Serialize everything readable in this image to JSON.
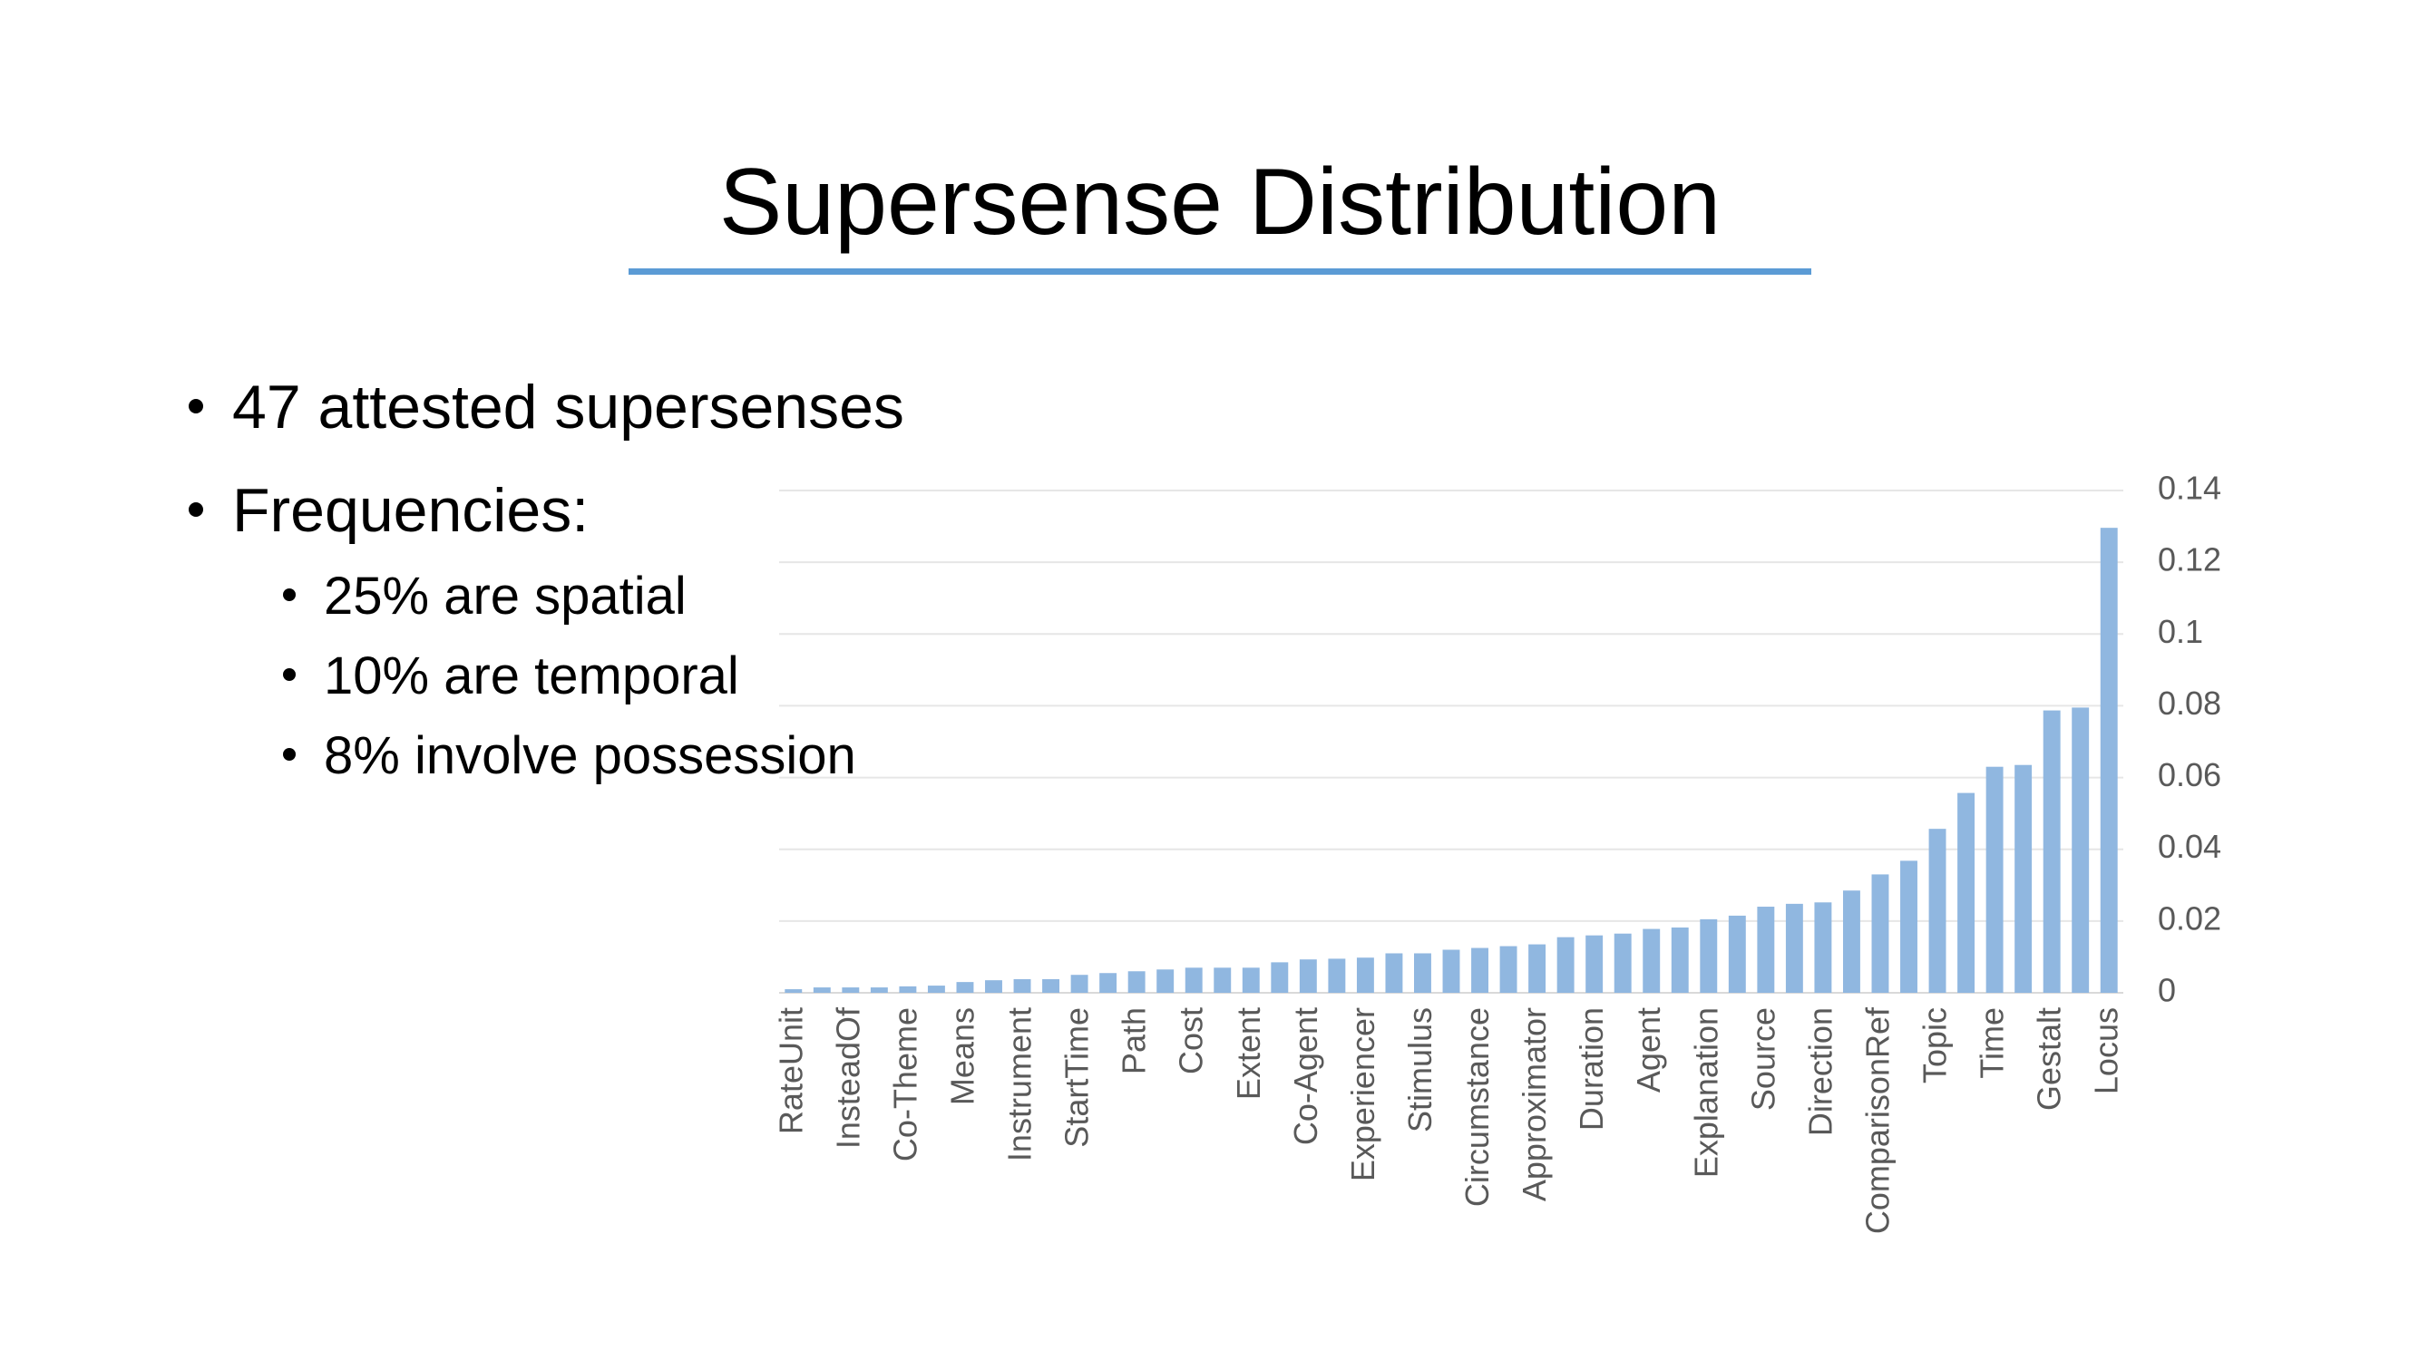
{
  "slide": {
    "title": "Supersense Distribution",
    "bullets": [
      "47 attested supersenses",
      "Frequencies:"
    ],
    "sub_bullets": [
      "25% are spatial",
      "10% are temporal",
      "8% involve possession"
    ]
  },
  "chart_data": {
    "type": "bar",
    "color": "#90b7e0",
    "grid": true,
    "categories": [
      "RateUnit",
      null,
      "InsteadOf",
      null,
      "Co-Theme",
      null,
      "Means",
      null,
      "Instrument",
      null,
      "StartTime",
      null,
      "Path",
      null,
      "Cost",
      null,
      "Extent",
      null,
      "Co-Agent",
      null,
      "Experiencer",
      null,
      "Stimulus",
      null,
      "Circumstance",
      null,
      "Approximator",
      null,
      "Duration",
      null,
      "Agent",
      null,
      "Explanation",
      null,
      "Source",
      null,
      "Direction",
      null,
      "ComparisonRef",
      null,
      "Topic",
      null,
      "Time",
      null,
      "Gestalt",
      null,
      "Locus"
    ],
    "values": [
      0.001,
      0.0015,
      0.0015,
      0.0015,
      0.0018,
      0.002,
      0.003,
      0.0035,
      0.0038,
      0.0038,
      0.005,
      0.0055,
      0.006,
      0.0065,
      0.007,
      0.007,
      0.007,
      0.0085,
      0.0093,
      0.0095,
      0.0098,
      0.011,
      0.011,
      0.012,
      0.0125,
      0.013,
      0.0135,
      0.0155,
      0.016,
      0.0165,
      0.0178,
      0.0182,
      0.0205,
      0.0215,
      0.024,
      0.0248,
      0.0252,
      0.0285,
      0.033,
      0.0368,
      0.0457,
      0.0557,
      0.063,
      0.0635,
      0.0787,
      0.0795,
      0.1296
    ],
    "ylim": [
      0,
      0.14
    ],
    "yticks": [
      0,
      0.02,
      0.04,
      0.06,
      0.08,
      0.1,
      0.12,
      0.14
    ]
  }
}
